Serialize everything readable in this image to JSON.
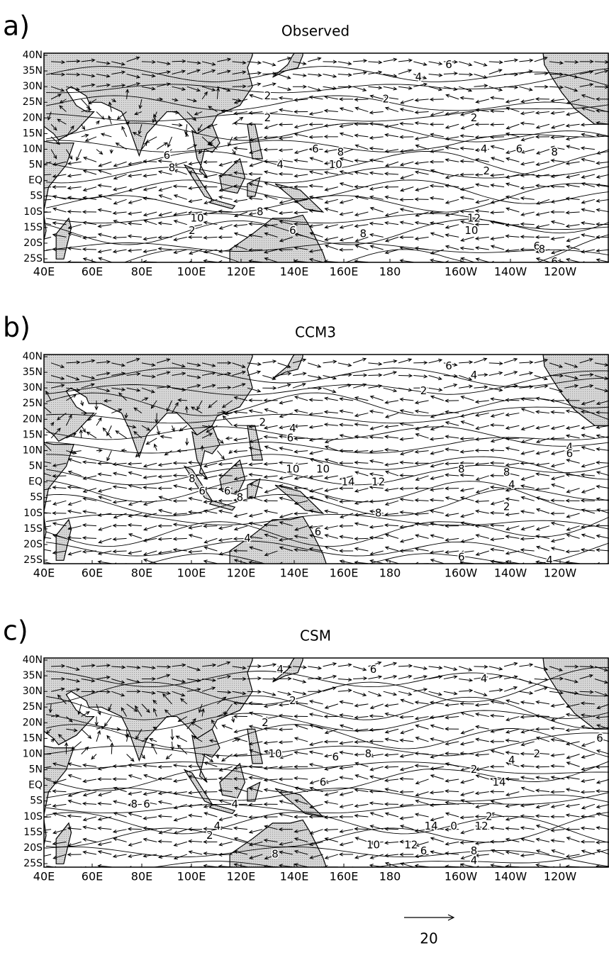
{
  "panels": [
    {
      "label": "a)",
      "title": "Observed",
      "lat_labels": [
        "40N",
        "35N",
        "30N",
        "25N",
        "20N",
        "15N",
        "10N",
        "5N",
        "EQ",
        "5S",
        "10S",
        "15S",
        "20S",
        "25S"
      ],
      "lon_labels": [
        "40E",
        "60E",
        "80E",
        "100E",
        "120E",
        "140E",
        "160E",
        "180",
        "160W",
        "140W",
        "120W"
      ],
      "contour_labels": [
        "6",
        "4",
        "2",
        "2",
        "2",
        "2",
        "6",
        "8",
        "4",
        "6",
        "8",
        "6",
        "8",
        "10",
        "4",
        "2",
        "10",
        "8",
        "6",
        "2",
        "12",
        "10",
        "8",
        "6",
        "8",
        "6"
      ]
    },
    {
      "label": "b)",
      "title": "CCM3",
      "lat_labels": [
        "40N",
        "35N",
        "30N",
        "25N",
        "20N",
        "15N",
        "10N",
        "5N",
        "EQ",
        "5S",
        "10S",
        "15S",
        "20S",
        "25S"
      ],
      "lon_labels": [
        "40E",
        "60E",
        "80E",
        "100E",
        "120E",
        "140E",
        "160E",
        "180",
        "160W",
        "140W",
        "120W"
      ],
      "contour_labels": [
        "6",
        "4",
        "2",
        "2",
        "4",
        "6",
        "4",
        "10",
        "10",
        "8",
        "8",
        "14",
        "12",
        "4",
        "6",
        "8",
        "6",
        "8",
        "6",
        "8",
        "4",
        "2",
        "6",
        "4",
        "6"
      ]
    },
    {
      "label": "c)",
      "title": "CSM",
      "lat_labels": [
        "40N",
        "35N",
        "30N",
        "25N",
        "20N",
        "15N",
        "10N",
        "5N",
        "EQ",
        "5S",
        "10S",
        "15S",
        "20S",
        "25S"
      ],
      "lon_labels": [
        "40E",
        "60E",
        "80E",
        "100E",
        "120E",
        "140E",
        "160E",
        "180",
        "160W",
        "140W",
        "120W"
      ],
      "contour_labels": [
        "4",
        "6",
        "4",
        "2",
        "2",
        "10",
        "6",
        "8",
        "4",
        "2",
        "6",
        "2",
        "14",
        "6",
        "8",
        "6",
        "4",
        "4",
        "2",
        "8",
        "14",
        "0",
        "12",
        "2",
        "10",
        "12",
        "6",
        "8",
        "4"
      ]
    }
  ],
  "scale_label": "20"
}
